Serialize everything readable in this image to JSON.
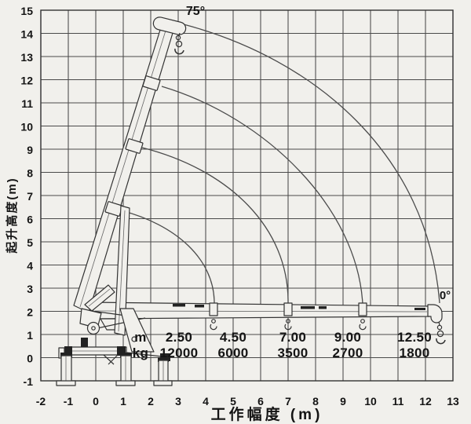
{
  "chart_data": {
    "type": "line",
    "title": "",
    "xlabel": "工作幅度 (m)",
    "ylabel": "起升高度(m)",
    "xlim": [
      -2,
      13
    ],
    "ylim": [
      -1,
      15
    ],
    "grid": true,
    "description": "Truck-mounted crane working range diagram: boom shown raised at 75° and horizontal at 0°, with four arcs tracing the boom-tip path for each telescopic extension",
    "boom_angle_max": "75°",
    "boom_angle_min": "0°",
    "envelope_arcs": [
      {
        "extension": 1,
        "from_xy": [
          0.6,
          6.4
        ],
        "to_xy": [
          4.3,
          2.3
        ]
      },
      {
        "extension": 2,
        "from_xy": [
          1.4,
          9.1
        ],
        "to_xy": [
          7.0,
          2.4
        ]
      },
      {
        "extension": 3,
        "from_xy": [
          2.0,
          11.8
        ],
        "to_xy": [
          9.7,
          2.4
        ]
      },
      {
        "extension": 4,
        "from_xy": [
          3.2,
          14.4
        ],
        "to_xy": [
          12.6,
          2.5
        ]
      }
    ],
    "load_table": {
      "radius_row_label": "m",
      "capacity_row_label": "kg",
      "radius_m": [
        2.5,
        4.5,
        7.0,
        9.0,
        12.5
      ],
      "capacity_kg": [
        12000,
        6000,
        3500,
        2700,
        1800
      ]
    }
  },
  "axes": {
    "x": {
      "min": -2,
      "max": 13,
      "title": "工作幅度 (m)",
      "ticks": [
        "-2",
        "-1",
        "0",
        "1",
        "2",
        "3",
        "4",
        "5",
        "6",
        "7",
        "8",
        "9",
        "10",
        "11",
        "12",
        "13"
      ]
    },
    "y": {
      "min": -1,
      "max": 15,
      "title": "起升高度(m)",
      "ticks": [
        "-1",
        "0",
        "1",
        "2",
        "3",
        "4",
        "5",
        "6",
        "7",
        "8",
        "9",
        "10",
        "11",
        "12",
        "13",
        "14",
        "15"
      ]
    }
  },
  "labels": {
    "boom_up": "75°",
    "boom_down": "0°"
  },
  "table": {
    "row1_label": "m",
    "row2_label": "kg",
    "row1": [
      "2.50",
      "4.50",
      "7.00",
      "9.00",
      "12.50"
    ],
    "row2": [
      "12000",
      "6000",
      "3500",
      "2700",
      "1800"
    ]
  }
}
